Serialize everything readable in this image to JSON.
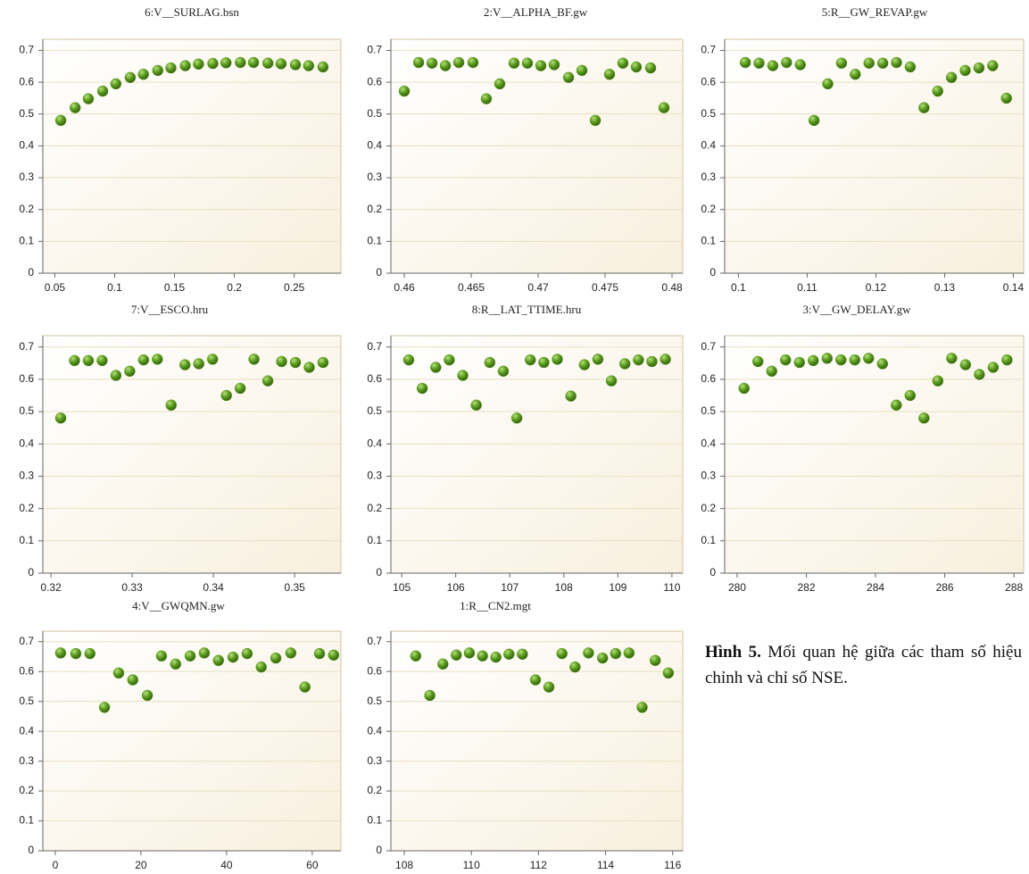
{
  "chart_data": [
    {
      "type": "scatter",
      "title": "6:V__SURLAG.bsn",
      "color": "#5a9a1e",
      "grid": true,
      "x": [
        0.055,
        0.067,
        0.078,
        0.09,
        0.101,
        0.113,
        0.124,
        0.136,
        0.147,
        0.159,
        0.17,
        0.182,
        0.193,
        0.205,
        0.216,
        0.228,
        0.239,
        0.251,
        0.262,
        0.274
      ],
      "values": [
        0.48,
        0.52,
        0.548,
        0.572,
        0.595,
        0.615,
        0.625,
        0.637,
        0.645,
        0.652,
        0.657,
        0.659,
        0.661,
        0.662,
        0.662,
        0.66,
        0.658,
        0.655,
        0.652,
        0.648
      ],
      "xlim": [
        0.04,
        0.289
      ],
      "xticks": [
        0.05,
        0.1,
        0.15,
        0.2,
        0.25
      ],
      "ylim": [
        0,
        0.735
      ],
      "yticks": [
        0,
        0.1,
        0.2,
        0.3,
        0.4,
        0.5,
        0.6,
        0.7
      ]
    },
    {
      "type": "scatter",
      "title": "2:V__ALPHA_BF.gw",
      "color": "#5a9a1e",
      "grid": true,
      "x": [
        0.46,
        0.46107,
        0.46207,
        0.46307,
        0.46407,
        0.46513,
        0.46613,
        0.46713,
        0.4682,
        0.4692,
        0.4702,
        0.4712,
        0.47227,
        0.47327,
        0.47427,
        0.47533,
        0.47633,
        0.47733,
        0.4784,
        0.4794
      ],
      "values": [
        0.572,
        0.662,
        0.66,
        0.652,
        0.662,
        0.662,
        0.548,
        0.595,
        0.66,
        0.66,
        0.652,
        0.655,
        0.615,
        0.637,
        0.48,
        0.625,
        0.66,
        0.648,
        0.645,
        0.52
      ],
      "xlim": [
        0.459,
        0.4808
      ],
      "xticks": [
        0.46,
        0.465,
        0.47,
        0.475,
        0.48
      ],
      "ylim": [
        0,
        0.735
      ],
      "yticks": [
        0,
        0.1,
        0.2,
        0.3,
        0.4,
        0.5,
        0.6,
        0.7
      ]
    },
    {
      "type": "scatter",
      "title": "5:R__GW_REVAP.gw",
      "color": "#5a9a1e",
      "grid": true,
      "x": [
        0.101,
        0.103,
        0.105,
        0.107,
        0.109,
        0.111,
        0.113,
        0.115,
        0.117,
        0.119,
        0.121,
        0.123,
        0.125,
        0.127,
        0.129,
        0.131,
        0.133,
        0.135,
        0.137,
        0.139
      ],
      "values": [
        0.662,
        0.66,
        0.652,
        0.662,
        0.655,
        0.48,
        0.595,
        0.66,
        0.625,
        0.66,
        0.66,
        0.662,
        0.648,
        0.52,
        0.572,
        0.615,
        0.637,
        0.645,
        0.652,
        0.55
      ],
      "xlim": [
        0.098,
        0.1415
      ],
      "xticks": [
        0.1,
        0.11,
        0.12,
        0.13,
        0.14
      ],
      "ylim": [
        0,
        0.735
      ],
      "yticks": [
        0,
        0.1,
        0.2,
        0.3,
        0.4,
        0.5,
        0.6,
        0.7
      ]
    },
    {
      "type": "scatter",
      "title": "7:V__ESCO.hru",
      "color": "#5a9a1e",
      "grid": true,
      "x": [
        0.3212,
        0.3229,
        0.3246,
        0.3263,
        0.328,
        0.3297,
        0.3314,
        0.3331,
        0.3348,
        0.3365,
        0.3382,
        0.3399,
        0.3416,
        0.3433,
        0.345,
        0.3467,
        0.3484,
        0.3501,
        0.3518,
        0.3535
      ],
      "values": [
        0.48,
        0.658,
        0.658,
        0.658,
        0.612,
        0.625,
        0.66,
        0.662,
        0.52,
        0.645,
        0.648,
        0.662,
        0.55,
        0.572,
        0.662,
        0.595,
        0.655,
        0.652,
        0.637,
        0.652
      ],
      "xlim": [
        0.319,
        0.3557
      ],
      "xticks": [
        0.32,
        0.33,
        0.34,
        0.35
      ],
      "ylim": [
        0,
        0.735
      ],
      "yticks": [
        0,
        0.1,
        0.2,
        0.3,
        0.4,
        0.5,
        0.6,
        0.7
      ]
    },
    {
      "type": "scatter",
      "title": "8:R__LAT_TTIME.hru",
      "color": "#5a9a1e",
      "grid": true,
      "x": [
        105.13,
        105.38,
        105.63,
        105.88,
        106.13,
        106.38,
        106.63,
        106.88,
        107.13,
        107.38,
        107.63,
        107.88,
        108.13,
        108.38,
        108.63,
        108.88,
        109.13,
        109.38,
        109.63,
        109.88
      ],
      "values": [
        0.66,
        0.572,
        0.637,
        0.66,
        0.612,
        0.52,
        0.652,
        0.625,
        0.48,
        0.66,
        0.652,
        0.662,
        0.548,
        0.645,
        0.662,
        0.595,
        0.648,
        0.66,
        0.655,
        0.662
      ],
      "xlim": [
        104.8,
        110.2
      ],
      "xticks": [
        105,
        106,
        107,
        108,
        109,
        110
      ],
      "ylim": [
        0,
        0.735
      ],
      "yticks": [
        0,
        0.1,
        0.2,
        0.3,
        0.4,
        0.5,
        0.6,
        0.7
      ]
    },
    {
      "type": "scatter",
      "title": "3:V__GW_DELAY.gw",
      "color": "#5a9a1e",
      "grid": true,
      "x": [
        280.2,
        280.6,
        281.0,
        281.4,
        281.8,
        282.2,
        282.6,
        283.0,
        283.4,
        283.8,
        284.2,
        284.6,
        285.0,
        285.4,
        285.8,
        286.2,
        286.6,
        287.0,
        287.4,
        287.8
      ],
      "values": [
        0.572,
        0.655,
        0.625,
        0.66,
        0.652,
        0.658,
        0.665,
        0.66,
        0.66,
        0.665,
        0.648,
        0.52,
        0.55,
        0.48,
        0.595,
        0.665,
        0.645,
        0.615,
        0.637,
        0.66
      ],
      "xlim": [
        279.64,
        288.28
      ],
      "xticks": [
        280,
        282,
        284,
        286,
        288
      ],
      "ylim": [
        0,
        0.735
      ],
      "yticks": [
        0,
        0.1,
        0.2,
        0.3,
        0.4,
        0.5,
        0.6,
        0.7
      ]
    },
    {
      "type": "scatter",
      "title": "4:V__GWQMN.gw",
      "color": "#5a9a1e",
      "grid": true,
      "x": [
        1.25,
        4.8,
        8.1,
        11.5,
        14.8,
        18.1,
        21.5,
        24.8,
        28.1,
        31.5,
        34.8,
        38.1,
        41.5,
        44.8,
        48.1,
        51.5,
        55.0,
        58.3,
        61.7,
        65.0
      ],
      "values": [
        0.662,
        0.66,
        0.66,
        0.48,
        0.595,
        0.572,
        0.52,
        0.652,
        0.625,
        0.652,
        0.662,
        0.637,
        0.648,
        0.66,
        0.615,
        0.645,
        0.662,
        0.548,
        0.66,
        0.655
      ],
      "xlim": [
        -2.9,
        66.7
      ],
      "xticks": [
        0,
        20,
        40,
        60
      ],
      "ylim": [
        0,
        0.735
      ],
      "yticks": [
        0,
        0.1,
        0.2,
        0.3,
        0.4,
        0.5,
        0.6,
        0.7
      ]
    },
    {
      "type": "scatter",
      "title": "1:R__CN2.mgt",
      "color": "#5a9a1e",
      "grid": true,
      "x": [
        108.34,
        108.76,
        109.15,
        109.55,
        109.94,
        110.33,
        110.73,
        111.12,
        111.52,
        111.91,
        112.31,
        112.7,
        113.09,
        113.49,
        113.91,
        114.3,
        114.7,
        115.09,
        115.48,
        115.87
      ],
      "values": [
        0.652,
        0.52,
        0.625,
        0.655,
        0.662,
        0.652,
        0.648,
        0.658,
        0.658,
        0.572,
        0.548,
        0.66,
        0.615,
        0.662,
        0.645,
        0.66,
        0.662,
        0.48,
        0.637,
        0.595
      ],
      "xlim": [
        107.6,
        116.3
      ],
      "xticks": [
        108,
        110,
        112,
        114,
        116
      ],
      "ylim": [
        0,
        0.735
      ],
      "yticks": [
        0,
        0.1,
        0.2,
        0.3,
        0.4,
        0.5,
        0.6,
        0.7
      ]
    }
  ],
  "caption": {
    "label": "Hình 5.",
    "text": "Mối quan hệ giữa các tham số hiệu chỉnh và chỉ số NSE."
  }
}
